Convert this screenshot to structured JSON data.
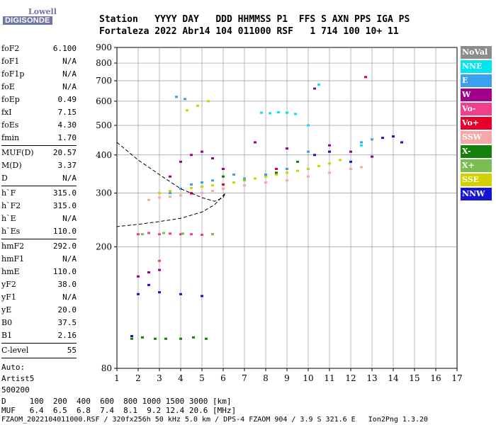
{
  "logo": {
    "line1": "Lowell",
    "line2": "DIGISONDE"
  },
  "header": {
    "line1": "Station   YYYY DAY   DDD HHMMSS P1  FFS S AXN PPS IGA PS",
    "line2": "Fortaleza 2022 Abr14 104 011000 RSF   1 714 100 10+ 11"
  },
  "params": [
    {
      "label": "foF2",
      "value": "6.100",
      "sep": false
    },
    {
      "label": "foF1",
      "value": "N/A",
      "sep": false
    },
    {
      "label": "foF1p",
      "value": "N/A",
      "sep": false
    },
    {
      "label": "foE",
      "value": "N/A",
      "sep": false
    },
    {
      "label": "foEp",
      "value": "0.49",
      "sep": false
    },
    {
      "label": "fxI",
      "value": "7.15",
      "sep": false
    },
    {
      "label": "foEs",
      "value": "4.30",
      "sep": false
    },
    {
      "label": "fmin",
      "value": "1.70",
      "sep": true
    },
    {
      "label": "MUF(D)",
      "value": "20.57",
      "sep": false
    },
    {
      "label": "M(D)",
      "value": "3.37",
      "sep": false
    },
    {
      "label": "D",
      "value": "N/A",
      "sep": true
    },
    {
      "label": "h`F",
      "value": "315.0",
      "sep": false
    },
    {
      "label": "h`F2",
      "value": "315.0",
      "sep": false
    },
    {
      "label": "h`E",
      "value": "N/A",
      "sep": false
    },
    {
      "label": "h`Es",
      "value": "110.0",
      "sep": true
    },
    {
      "label": "hmF2",
      "value": "292.0",
      "sep": false
    },
    {
      "label": "hmF1",
      "value": "N/A",
      "sep": false
    },
    {
      "label": "hmE",
      "value": "110.0",
      "sep": false
    },
    {
      "label": "yF2",
      "value": "38.0",
      "sep": false
    },
    {
      "label": "yF1",
      "value": "N/A",
      "sep": false
    },
    {
      "label": "yE",
      "value": "20.0",
      "sep": false
    },
    {
      "label": "B0",
      "value": "37.5",
      "sep": false
    },
    {
      "label": "B1",
      "value": "2.16",
      "sep": true
    },
    {
      "label": "C-level",
      "value": "55",
      "sep": true
    }
  ],
  "auto": [
    "Auto:",
    "Artist5",
    "500200"
  ],
  "legend": [
    {
      "label": "NoVal",
      "color": "#8c8c8c"
    },
    {
      "label": "NNE",
      "color": "#00e5f0"
    },
    {
      "label": "E",
      "color": "#3aa0f0"
    },
    {
      "label": "W",
      "color": "#a0008c"
    },
    {
      "label": "Vo-",
      "color": "#f0408c"
    },
    {
      "label": "Vo+",
      "color": "#e8002a"
    },
    {
      "label": "SSW",
      "color": "#f5a8a8"
    },
    {
      "label": "X-",
      "color": "#14820a"
    },
    {
      "label": "X+",
      "color": "#7abd50"
    },
    {
      "label": "SSE",
      "color": "#d2d200"
    },
    {
      "label": "NNW",
      "color": "#1414d2"
    }
  ],
  "footer": {
    "line1": "D     100  200  400  600  800 1000 1500 3000 [km]",
    "line2": "MUF   6.4  6.5  6.8  7.4  8.1  9.2 12.4 20.6 [MHz]",
    "line3": "FZAOM_2022104011000.RSF / 320fx256h 50 kHz 5.0 km / DPS-4 FZAOM 904 / 3.9 S 321.6 E   Ion2Png 1.3.20"
  },
  "chart_data": {
    "type": "scatter",
    "x_ticks": [
      1,
      2,
      3,
      4,
      5,
      6,
      7,
      8,
      9,
      10,
      11,
      12,
      13,
      14,
      15,
      16,
      17
    ],
    "y_ticks": [
      80,
      200,
      300,
      400,
      500,
      600,
      700,
      800,
      900
    ],
    "xlim": [
      1,
      17
    ],
    "ylim": [
      80,
      900
    ],
    "y_scale": "log",
    "grid": true,
    "series": [
      {
        "name": "SSE",
        "color": "#d2d200",
        "points": [
          [
            3.0,
            300
          ],
          [
            3.5,
            305
          ],
          [
            4.0,
            310
          ],
          [
            4.5,
            312
          ],
          [
            5.0,
            315
          ],
          [
            5.5,
            318
          ],
          [
            6.0,
            320
          ],
          [
            6.5,
            325
          ],
          [
            7.0,
            330
          ],
          [
            7.5,
            335
          ],
          [
            8.0,
            340
          ],
          [
            8.5,
            345
          ],
          [
            9.0,
            350
          ],
          [
            9.5,
            355
          ],
          [
            10.0,
            360
          ],
          [
            10.5,
            368
          ],
          [
            11.0,
            375
          ],
          [
            11.5,
            385
          ],
          [
            4.3,
            560
          ],
          [
            4.8,
            580
          ],
          [
            5.3,
            600
          ],
          [
            3.8,
            620
          ]
        ]
      },
      {
        "name": "SSW",
        "color": "#f5a8a8",
        "points": [
          [
            2.5,
            285
          ],
          [
            3.0,
            290
          ],
          [
            3.5,
            292
          ],
          [
            4.0,
            295
          ],
          [
            4.5,
            298
          ],
          [
            5.0,
            300
          ],
          [
            5.5,
            305
          ],
          [
            6.0,
            310
          ],
          [
            7.0,
            318
          ],
          [
            8.0,
            325
          ],
          [
            9.0,
            330
          ],
          [
            10.0,
            340
          ],
          [
            11.0,
            350
          ],
          [
            12.0,
            360
          ],
          [
            12.5,
            365
          ]
        ]
      },
      {
        "name": "E",
        "color": "#3aa0f0",
        "points": [
          [
            3.5,
            300
          ],
          [
            4.0,
            310
          ],
          [
            4.5,
            320
          ],
          [
            5.0,
            325
          ],
          [
            5.5,
            330
          ],
          [
            6.0,
            340
          ],
          [
            6.5,
            345
          ],
          [
            7.0,
            335
          ],
          [
            8.0,
            345
          ],
          [
            9.0,
            360
          ],
          [
            10.0,
            410
          ],
          [
            12.5,
            440
          ],
          [
            13.0,
            450
          ],
          [
            3.8,
            620
          ],
          [
            4.2,
            610
          ]
        ]
      },
      {
        "name": "NNE",
        "color": "#00e5f0",
        "points": [
          [
            7.8,
            550
          ],
          [
            8.2,
            548
          ],
          [
            8.6,
            552
          ],
          [
            9.0,
            550
          ],
          [
            9.4,
            545
          ],
          [
            10.0,
            500
          ],
          [
            10.5,
            680
          ],
          [
            12.5,
            430
          ]
        ]
      },
      {
        "name": "W",
        "color": "#a0008c",
        "points": [
          [
            2.0,
            160
          ],
          [
            2.5,
            165
          ],
          [
            3.0,
            168
          ],
          [
            3.5,
            340
          ],
          [
            4.0,
            380
          ],
          [
            4.5,
            400
          ],
          [
            5.0,
            410
          ],
          [
            5.5,
            390
          ],
          [
            6.0,
            360
          ],
          [
            7.5,
            440
          ],
          [
            9.0,
            420
          ],
          [
            11.0,
            430
          ],
          [
            12.0,
            410
          ],
          [
            13.0,
            395
          ],
          [
            10.3,
            660
          ]
        ]
      },
      {
        "name": "Vo-",
        "color": "#f0408c",
        "points": [
          [
            2.0,
            220
          ],
          [
            2.5,
            222
          ],
          [
            3.0,
            220
          ],
          [
            3.5,
            221
          ],
          [
            4.0,
            220
          ],
          [
            4.5,
            220
          ],
          [
            5.0,
            219
          ],
          [
            5.5,
            220
          ],
          [
            3.0,
            180
          ]
        ]
      },
      {
        "name": "Vo+",
        "color": "#e8002a",
        "points": [
          [
            4.5,
            300
          ],
          [
            6.0,
            320
          ],
          [
            8.5,
            360
          ],
          [
            12.7,
            720
          ]
        ]
      },
      {
        "name": "X-",
        "color": "#14820a",
        "points": [
          [
            1.7,
            100
          ],
          [
            2.2,
            101
          ],
          [
            2.8,
            100
          ],
          [
            3.3,
            100
          ],
          [
            4.0,
            100
          ],
          [
            4.6,
            101
          ],
          [
            5.2,
            100
          ],
          [
            6.0,
            340
          ],
          [
            8.5,
            350
          ],
          [
            9.5,
            380
          ]
        ]
      },
      {
        "name": "X+",
        "color": "#7abd50",
        "points": [
          [
            2.2,
            220
          ],
          [
            3.2,
            222
          ],
          [
            4.1,
            221
          ],
          [
            5.5,
            220
          ],
          [
            7.0,
            332
          ]
        ]
      },
      {
        "name": "NNW",
        "color": "#1414d2",
        "points": [
          [
            1.7,
            102
          ],
          [
            2.0,
            140
          ],
          [
            2.5,
            150
          ],
          [
            3.0,
            142
          ],
          [
            4.0,
            140
          ],
          [
            5.0,
            138
          ],
          [
            10.3,
            400
          ],
          [
            11.0,
            410
          ],
          [
            12.0,
            380
          ],
          [
            13.5,
            455
          ],
          [
            14.0,
            460
          ],
          [
            14.4,
            440
          ]
        ]
      }
    ],
    "profile": [
      [
        1,
        440
      ],
      [
        2,
        385
      ],
      [
        3,
        345
      ],
      [
        4,
        310
      ],
      [
        5,
        290
      ],
      [
        5.6,
        282
      ],
      [
        6.0,
        290
      ],
      [
        6.1,
        300
      ],
      [
        5.6,
        275
      ],
      [
        5.0,
        260
      ],
      [
        4.0,
        248
      ],
      [
        3.0,
        242
      ],
      [
        2.0,
        237
      ],
      [
        1,
        233
      ]
    ]
  }
}
